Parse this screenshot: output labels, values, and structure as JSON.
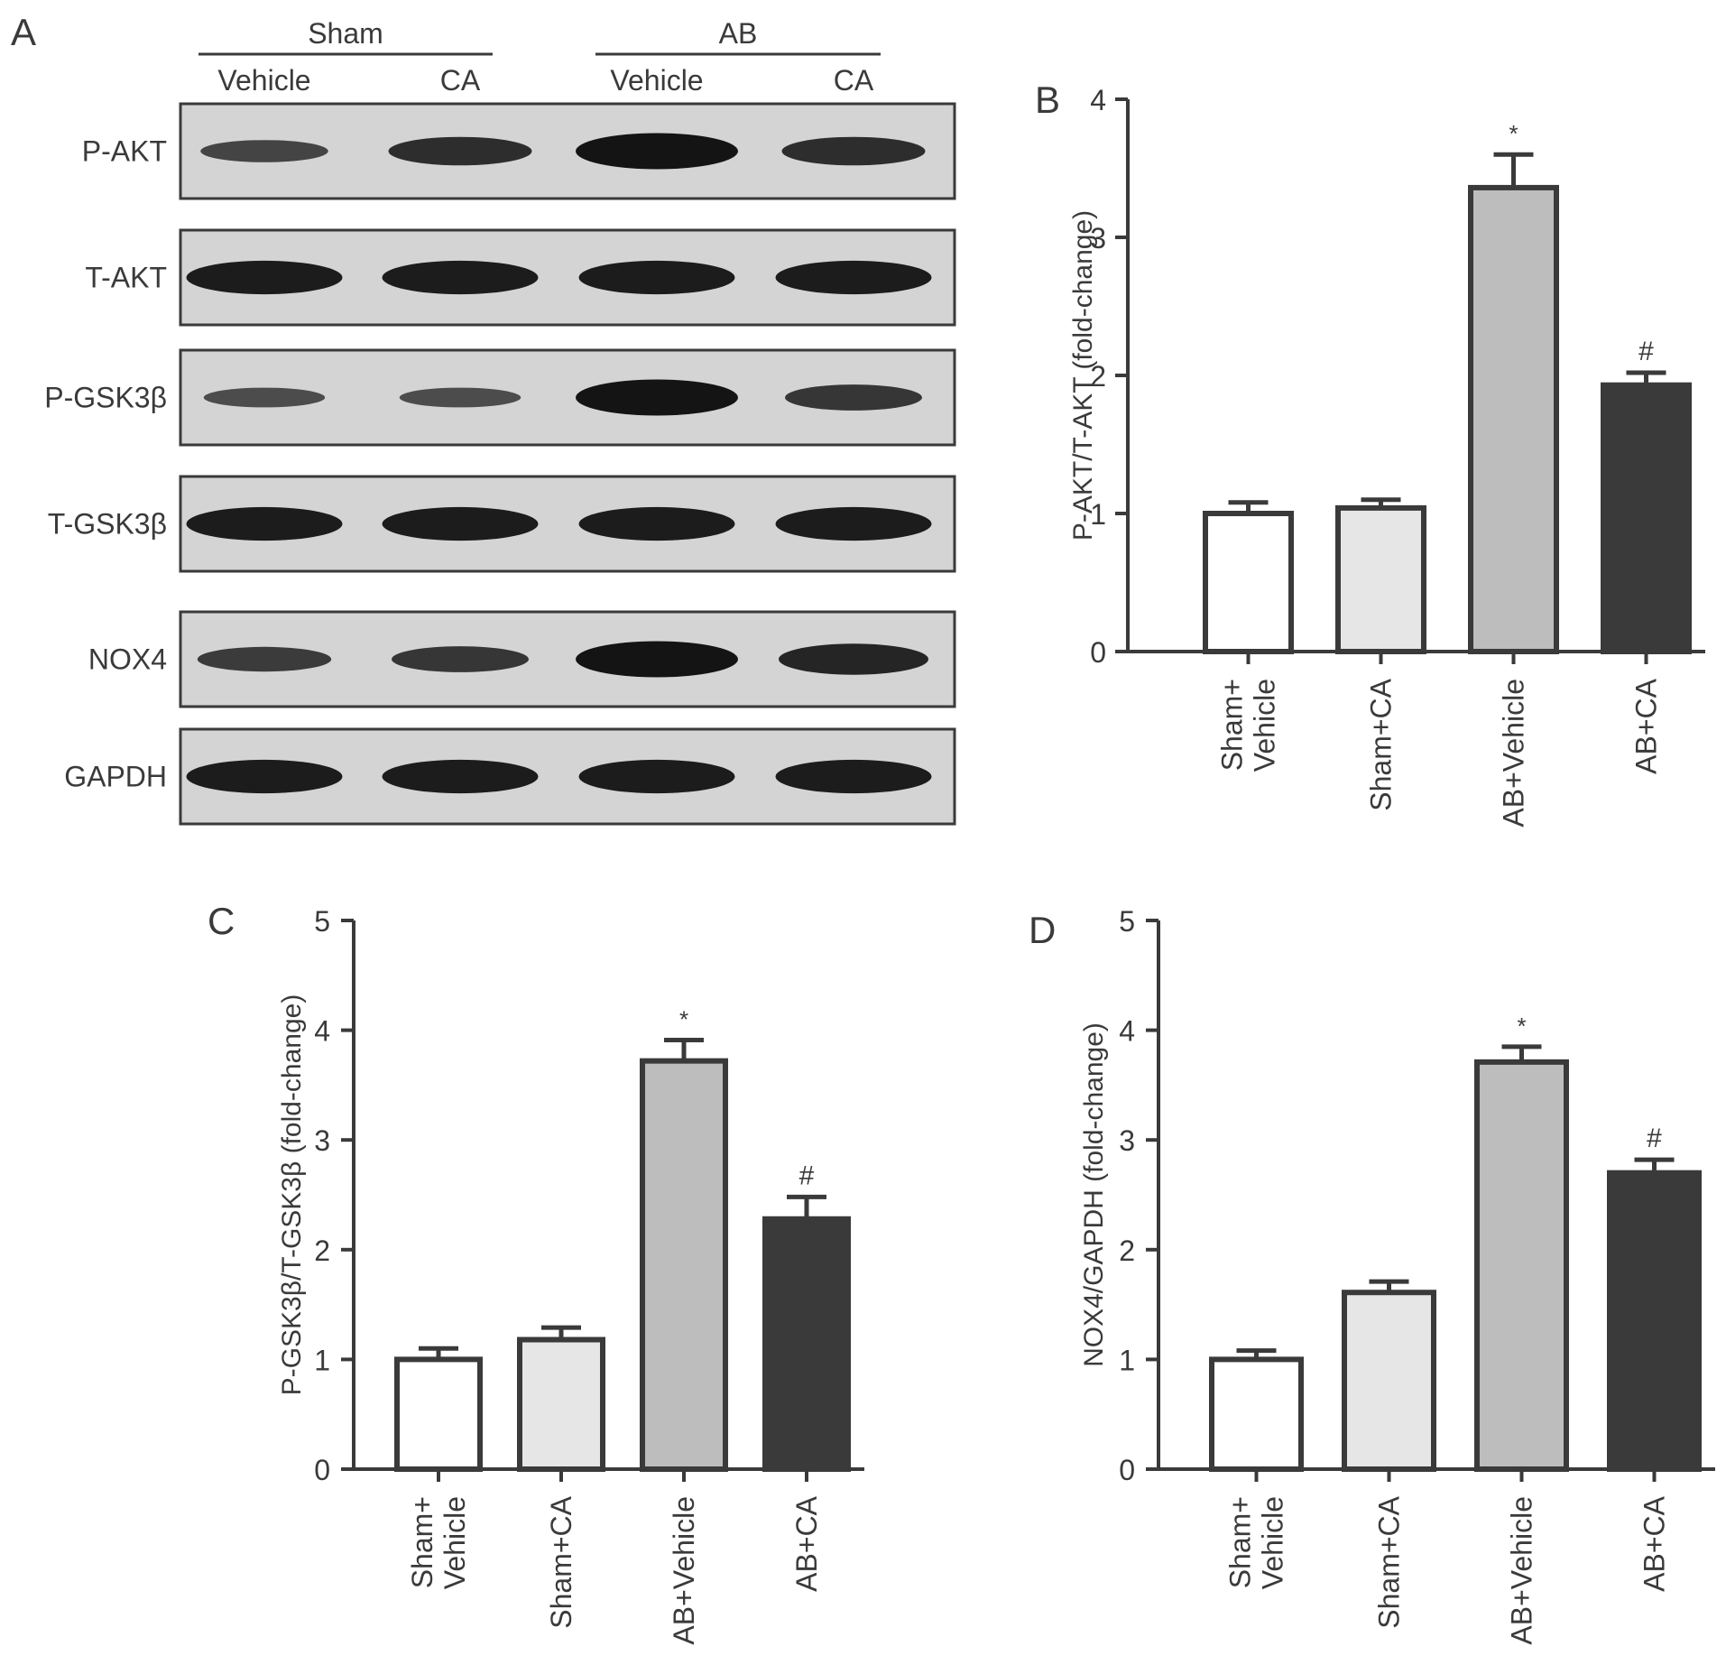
{
  "panel_labels": {
    "a": "A",
    "b": "B",
    "c": "C",
    "d": "D"
  },
  "blot": {
    "groups": [
      {
        "name": "Sham",
        "lanes": [
          "Vehicle",
          "CA"
        ]
      },
      {
        "name": "AB",
        "lanes": [
          "Vehicle",
          "CA"
        ]
      }
    ],
    "rows": [
      {
        "label": "P-AKT",
        "intensity": [
          0.45,
          0.7,
          1.0,
          0.7
        ]
      },
      {
        "label": "T-AKT",
        "intensity": [
          0.9,
          0.9,
          0.9,
          0.9
        ]
      },
      {
        "label": "P-GSK3β",
        "intensity": [
          0.35,
          0.35,
          1.0,
          0.6
        ]
      },
      {
        "label": "T-GSK3β",
        "intensity": [
          0.9,
          0.9,
          0.9,
          0.9
        ]
      },
      {
        "label": "NOX4",
        "intensity": [
          0.55,
          0.6,
          1.0,
          0.8
        ]
      },
      {
        "label": "GAPDH",
        "intensity": [
          0.9,
          0.9,
          0.9,
          0.9
        ]
      }
    ]
  },
  "colors": {
    "bar_fills": [
      "#ffffff",
      "#e6e6e6",
      "#bdbdbd",
      "#3a3a3a"
    ],
    "stroke": "#3a3a3a",
    "blot_background": "#d4d4d4",
    "band": "#141414"
  },
  "chart_data": [
    {
      "panel": "B",
      "type": "bar",
      "categories": [
        "Sham+\nVehicle",
        "Sham+CA",
        "AB+Vehicle",
        "AB+CA"
      ],
      "values": [
        1.0,
        1.04,
        3.36,
        1.93
      ],
      "errors": [
        0.08,
        0.06,
        0.24,
        0.09
      ],
      "annotations": [
        "",
        "",
        "*",
        "#"
      ],
      "ylabel": "P-AKT/T-AKT (fold-change)",
      "ylim": [
        0,
        4
      ],
      "yticks": [
        "0",
        "1",
        "2",
        "3",
        "4"
      ]
    },
    {
      "panel": "C",
      "type": "bar",
      "categories": [
        "Sham+\nVehicle",
        "Sham+CA",
        "AB+Vehicle",
        "AB+CA"
      ],
      "values": [
        1.0,
        1.18,
        3.72,
        2.28
      ],
      "errors": [
        0.1,
        0.11,
        0.19,
        0.2
      ],
      "annotations": [
        "",
        "",
        "*",
        "#"
      ],
      "ylabel": "P-GSK3β/T-GSK3β (fold-change)",
      "ylim": [
        0,
        5
      ],
      "yticks": [
        "0",
        "1",
        "2",
        "3",
        "4",
        "5"
      ]
    },
    {
      "panel": "D",
      "type": "bar",
      "categories": [
        "Sham+\nVehicle",
        "Sham+CA",
        "AB+Vehicle",
        "AB+CA"
      ],
      "values": [
        1.0,
        1.61,
        3.71,
        2.7
      ],
      "errors": [
        0.08,
        0.1,
        0.14,
        0.12
      ],
      "annotations": [
        "",
        "",
        "*",
        "#"
      ],
      "ylabel": "NOX4/GAPDH (fold-change)",
      "ylim": [
        0,
        5
      ],
      "yticks": [
        "0",
        "1",
        "2",
        "3",
        "4",
        "5"
      ]
    }
  ]
}
